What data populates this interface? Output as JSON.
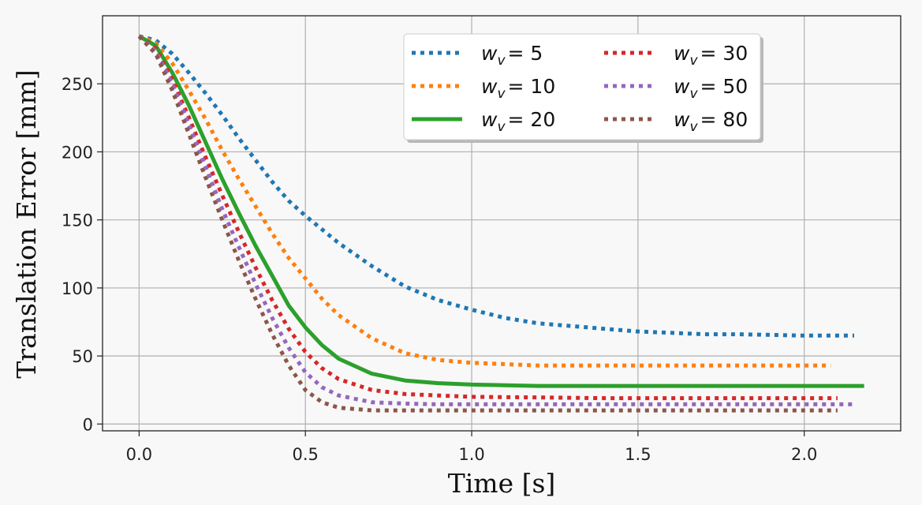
{
  "chart_data": {
    "type": "line",
    "xlabel": "Time [s]",
    "ylabel": "Translation Error [mm]",
    "xlim": [
      -0.11,
      2.29
    ],
    "ylim": [
      -5,
      300
    ],
    "xticks": [
      0.0,
      0.5,
      1.0,
      1.5,
      2.0
    ],
    "xtick_labels": [
      "0.0",
      "0.5",
      "1.0",
      "1.5",
      "2.0"
    ],
    "yticks": [
      0,
      50,
      100,
      150,
      200,
      250
    ],
    "ytick_labels": [
      "0",
      "50",
      "100",
      "150",
      "200",
      "250"
    ],
    "grid": true,
    "legend_position": "top-center",
    "series": [
      {
        "name": "w_v = 5",
        "legend_base": "w",
        "legend_sub": "v",
        "legend_value": "= 5",
        "color": "#1f77b4",
        "style": "dotted",
        "x": [
          0.0,
          0.05,
          0.1,
          0.15,
          0.2,
          0.25,
          0.3,
          0.35,
          0.4,
          0.45,
          0.5,
          0.6,
          0.7,
          0.8,
          0.9,
          1.0,
          1.1,
          1.2,
          1.3,
          1.4,
          1.5,
          1.6,
          1.7,
          1.8,
          1.9,
          2.0,
          2.1,
          2.15
        ],
        "y": [
          285,
          282,
          272,
          258,
          243,
          227,
          210,
          194,
          178,
          164,
          153,
          133,
          116,
          101,
          91,
          84,
          78,
          74,
          72,
          70,
          68,
          67,
          66,
          66,
          65.5,
          65,
          65,
          65
        ]
      },
      {
        "name": "w_v = 10",
        "legend_base": "w",
        "legend_sub": "v",
        "legend_value": "= 10",
        "color": "#ff7f0e",
        "style": "dotted",
        "x": [
          0.0,
          0.05,
          0.1,
          0.15,
          0.2,
          0.25,
          0.3,
          0.35,
          0.4,
          0.45,
          0.5,
          0.55,
          0.6,
          0.7,
          0.8,
          0.9,
          1.0,
          1.1,
          1.2,
          1.4,
          1.6,
          1.8,
          2.0,
          2.08
        ],
        "y": [
          285,
          280,
          265,
          245,
          224,
          201,
          180,
          160,
          140,
          122,
          107,
          92,
          80,
          63,
          52,
          47,
          45,
          44,
          43,
          43,
          43,
          43,
          43,
          43
        ]
      },
      {
        "name": "w_v = 20",
        "legend_base": "w",
        "legend_sub": "v",
        "legend_value": "= 20",
        "color": "#2ca02c",
        "style": "solid",
        "x": [
          0.0,
          0.05,
          0.1,
          0.15,
          0.2,
          0.25,
          0.3,
          0.35,
          0.4,
          0.45,
          0.5,
          0.55,
          0.6,
          0.7,
          0.8,
          0.9,
          1.0,
          1.1,
          1.2,
          1.4,
          1.6,
          1.8,
          2.0,
          2.18
        ],
        "y": [
          285,
          278,
          258,
          234,
          207,
          180,
          155,
          131,
          109,
          87,
          71,
          58,
          48,
          37,
          32,
          30,
          29,
          28.5,
          28,
          28,
          28,
          28,
          28,
          28
        ]
      },
      {
        "name": "w_v = 30",
        "legend_base": "w",
        "legend_sub": "v",
        "legend_value": "= 30",
        "color": "#d62728",
        "style": "dotted",
        "x": [
          0.0,
          0.05,
          0.1,
          0.15,
          0.2,
          0.25,
          0.3,
          0.35,
          0.4,
          0.45,
          0.5,
          0.55,
          0.6,
          0.7,
          0.8,
          0.9,
          1.0,
          1.2,
          1.4,
          1.6,
          1.8,
          2.0,
          2.1
        ],
        "y": [
          285,
          276,
          253,
          225,
          196,
          168,
          141,
          115,
          91,
          70,
          53,
          41,
          33,
          25,
          22,
          21,
          20,
          19.5,
          19,
          19,
          19,
          19,
          19
        ]
      },
      {
        "name": "w_v = 50",
        "legend_base": "w",
        "legend_sub": "v",
        "legend_value": "= 50",
        "color": "#9467bd",
        "style": "dotted",
        "x": [
          0.0,
          0.05,
          0.1,
          0.15,
          0.2,
          0.25,
          0.3,
          0.35,
          0.4,
          0.45,
          0.5,
          0.55,
          0.6,
          0.7,
          0.8,
          0.9,
          1.0,
          1.2,
          1.4,
          1.6,
          1.8,
          2.0,
          2.15
        ],
        "y": [
          285,
          274,
          250,
          220,
          189,
          158,
          130,
          103,
          78,
          56,
          38,
          27,
          21,
          16,
          15,
          14.5,
          14.5,
          14.5,
          14.5,
          14.5,
          14.5,
          14.5,
          14.5
        ]
      },
      {
        "name": "w_v = 80",
        "legend_base": "w",
        "legend_sub": "v",
        "legend_value": "= 80",
        "color": "#8c564b",
        "style": "dotted",
        "x": [
          0.0,
          0.05,
          0.1,
          0.15,
          0.2,
          0.25,
          0.3,
          0.35,
          0.4,
          0.45,
          0.5,
          0.55,
          0.6,
          0.7,
          0.8,
          0.9,
          1.0,
          1.2,
          1.4,
          1.6,
          1.8,
          2.0,
          2.1
        ],
        "y": [
          285,
          272,
          245,
          213,
          181,
          150,
          120,
          92,
          66,
          43,
          25,
          16,
          12,
          10,
          10,
          10,
          10,
          10,
          10,
          10,
          10,
          10,
          10
        ]
      }
    ]
  }
}
